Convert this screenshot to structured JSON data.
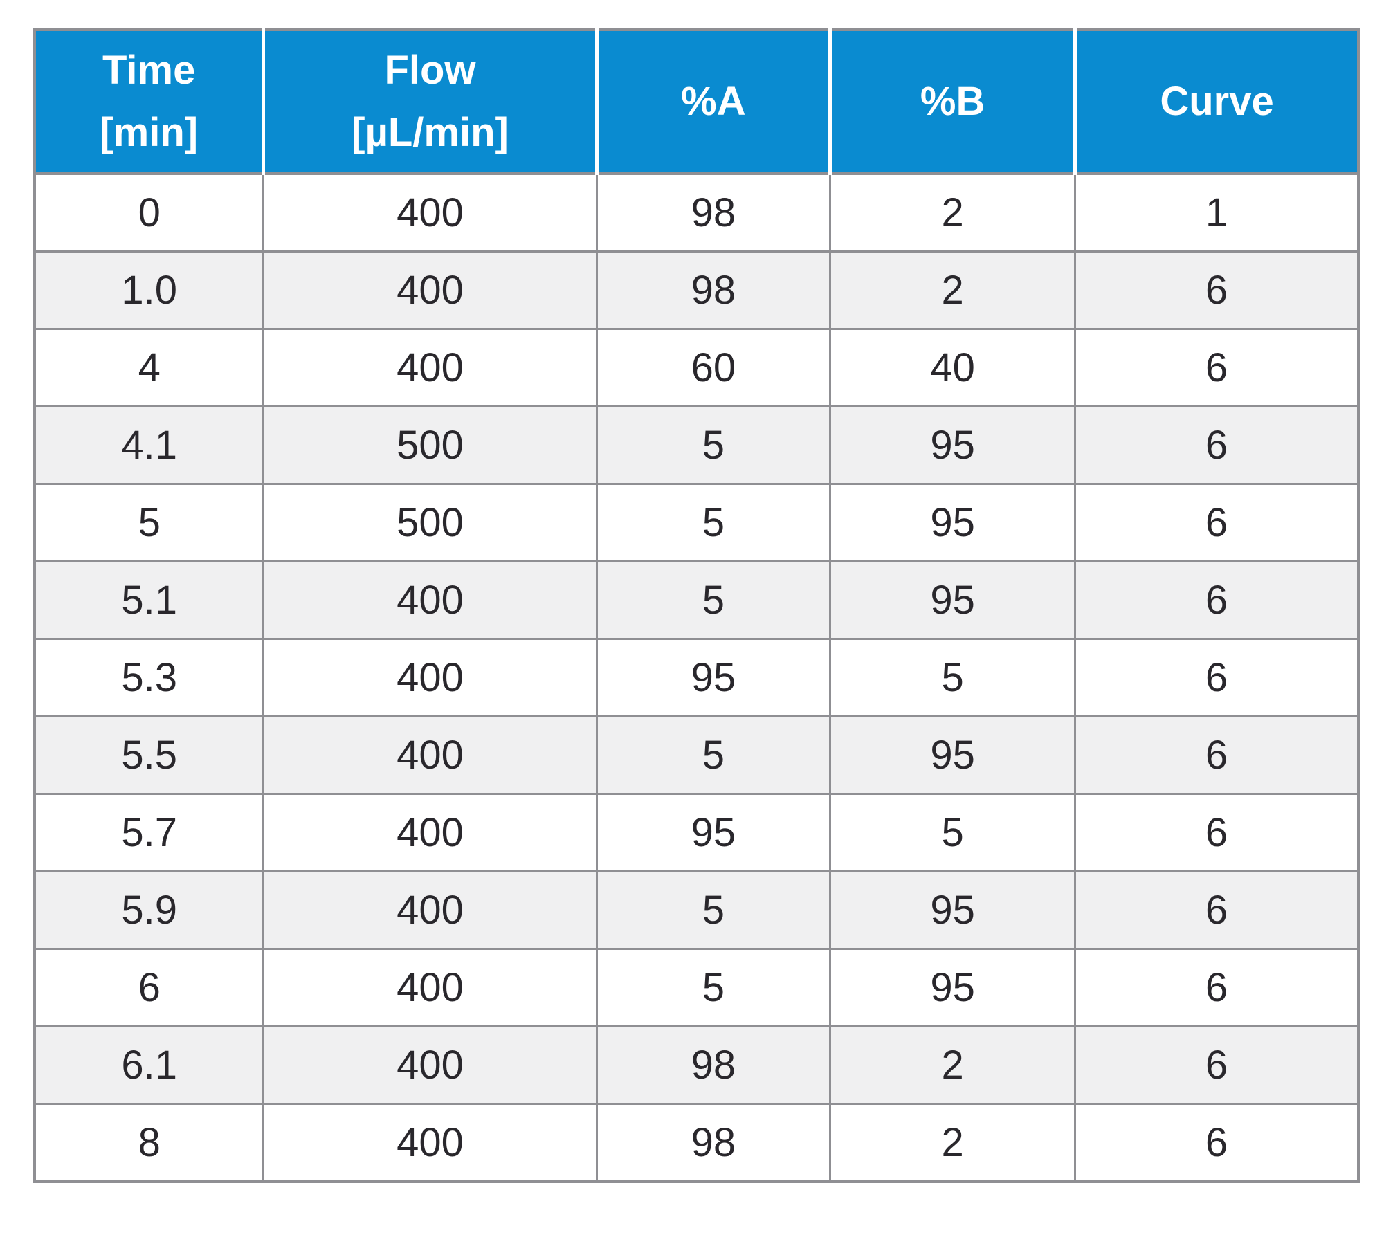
{
  "table": {
    "columns": [
      "Time\n[min]",
      "Flow\n[µL/min]",
      "%A",
      "%B",
      "Curve"
    ],
    "rows": [
      [
        "0",
        "400",
        "98",
        "2",
        "1"
      ],
      [
        "1.0",
        "400",
        "98",
        "2",
        "6"
      ],
      [
        "4",
        "400",
        "60",
        "40",
        "6"
      ],
      [
        "4.1",
        "500",
        "5",
        "95",
        "6"
      ],
      [
        "5",
        "500",
        "5",
        "95",
        "6"
      ],
      [
        "5.1",
        "400",
        "5",
        "95",
        "6"
      ],
      [
        "5.3",
        "400",
        "95",
        "5",
        "6"
      ],
      [
        "5.5",
        "400",
        "5",
        "95",
        "6"
      ],
      [
        "5.7",
        "400",
        "95",
        "5",
        "6"
      ],
      [
        "5.9",
        "400",
        "5",
        "95",
        "6"
      ],
      [
        "6",
        "400",
        "5",
        "95",
        "6"
      ],
      [
        "6.1",
        "400",
        "98",
        "2",
        "6"
      ],
      [
        "8",
        "400",
        "98",
        "2",
        "6"
      ]
    ],
    "colors": {
      "header_bg": "#0a8bd0",
      "header_text": "#ffffff",
      "row_bg": "#ffffff",
      "row_alt_bg": "#f0f0f1",
      "grid_border": "#8f8f93",
      "header_separator": "#ffffff",
      "cell_text": "#29272c"
    }
  }
}
